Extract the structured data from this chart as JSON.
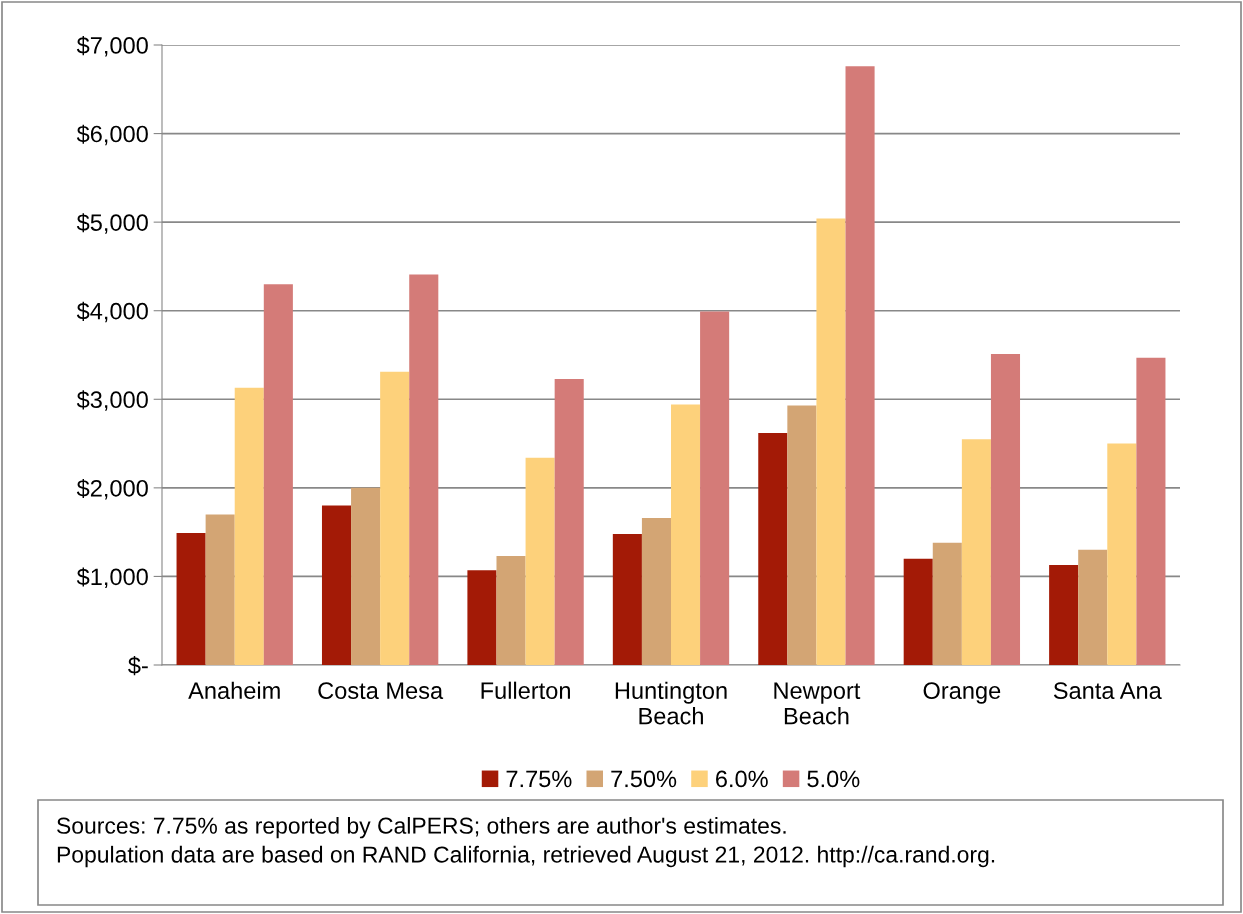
{
  "chart_data": {
    "type": "bar",
    "categories": [
      "Anaheim",
      "Costa Mesa",
      "Fullerton",
      "Huntington\nBeach",
      "Newport\nBeach",
      "Orange",
      "Santa Ana"
    ],
    "series": [
      {
        "name": "7.75%",
        "color": "#a31a06",
        "values": [
          1490,
          1800,
          1070,
          1480,
          2620,
          1200,
          1130
        ]
      },
      {
        "name": "7.50%",
        "color": "#d3a574",
        "values": [
          1700,
          2000,
          1230,
          1660,
          2930,
          1380,
          1300
        ]
      },
      {
        "name": "6.0%",
        "color": "#fdd17b",
        "values": [
          3130,
          3310,
          2340,
          2940,
          5040,
          2550,
          2500
        ]
      },
      {
        "name": "5.0%",
        "color": "#d47b78",
        "values": [
          4300,
          4410,
          3230,
          3990,
          6760,
          3510,
          3470
        ]
      }
    ],
    "ylim": [
      0,
      7000
    ],
    "yticks": [
      {
        "value": 0,
        "label": "$-"
      },
      {
        "value": 1000,
        "label": "$1,000"
      },
      {
        "value": 2000,
        "label": "$2,000"
      },
      {
        "value": 3000,
        "label": "$3,000"
      },
      {
        "value": 4000,
        "label": "$4,000"
      },
      {
        "value": 5000,
        "label": "$5,000"
      },
      {
        "value": 6000,
        "label": "$6,000"
      },
      {
        "value": 7000,
        "label": "$7,000"
      }
    ],
    "grid": "y",
    "legend": "bottom",
    "annotations": [
      "Sources: 7.75% as reported by CalPERS; others are author's estimates.\nPopulation data are based on RAND California, retrieved August 21, 2012. http://ca.rand.org."
    ]
  }
}
